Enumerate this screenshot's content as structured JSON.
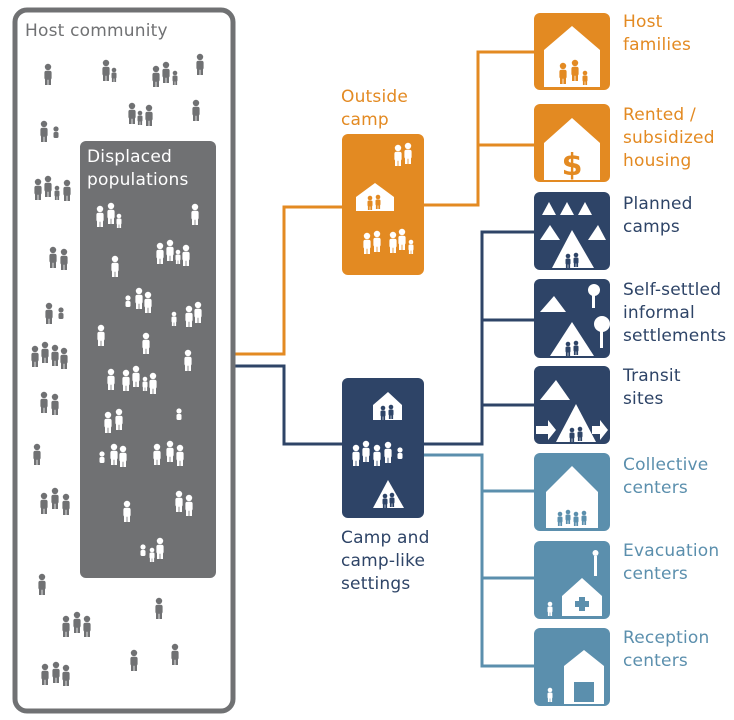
{
  "colors": {
    "gray": "#707173",
    "orange": "#e38a22",
    "navy": "#2e4467",
    "steel": "#5b8fad",
    "white": "#ffffff"
  },
  "host_community": {
    "label": "Host community"
  },
  "displaced": {
    "label": "Displaced\npopulations"
  },
  "outside_camp": {
    "label": "Outside\ncamp"
  },
  "camp_settings": {
    "label": "Camp and\ncamp-like\nsettings"
  },
  "options": [
    {
      "id": "host-families",
      "label": "Host\nfamilies",
      "group": "outside",
      "icon": "house-with-people-icon"
    },
    {
      "id": "rented-housing",
      "label": "Rented /\nsubsidized\nhousing",
      "group": "outside",
      "icon": "house-dollar-icon"
    },
    {
      "id": "planned-camps",
      "label": "Planned\ncamps",
      "group": "camp",
      "icon": "planned-camp-tents-icon"
    },
    {
      "id": "self-settled",
      "label": "Self-settled\ninformal\nsettlements",
      "group": "camp",
      "icon": "informal-settlement-icon"
    },
    {
      "id": "transit-sites",
      "label": "Transit\nsites",
      "group": "camp",
      "icon": "transit-site-icon"
    },
    {
      "id": "collective-centers",
      "label": "Collective\ncenters",
      "group": "camp-like",
      "icon": "collective-center-icon"
    },
    {
      "id": "evacuation-centers",
      "label": "Evacuation\ncenters",
      "group": "camp-like",
      "icon": "evacuation-center-icon"
    },
    {
      "id": "reception-centers",
      "label": "Reception\ncenters",
      "group": "camp-like",
      "icon": "reception-center-icon"
    }
  ]
}
